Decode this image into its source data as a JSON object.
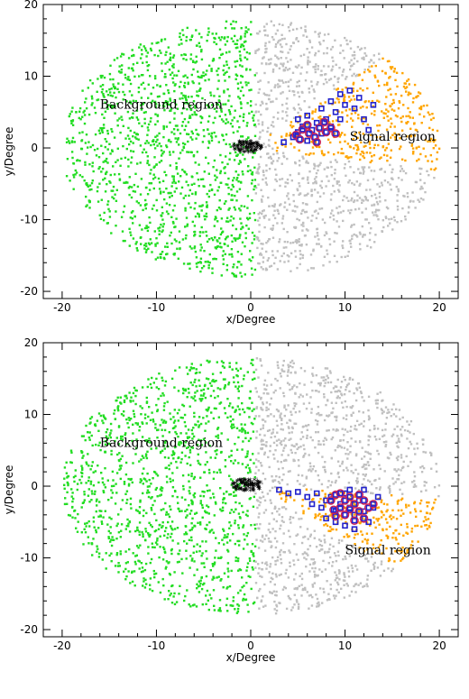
{
  "chart_data": [
    {
      "type": "scatter",
      "xlabel": "x/Degree",
      "ylabel": "y/Degree",
      "xlim": [
        -22,
        22
      ],
      "ylim": [
        -21,
        20
      ],
      "xticks": [
        "-20",
        "-10",
        "0",
        "10",
        "20"
      ],
      "yticks": [
        "-20",
        "-10",
        "0",
        "10",
        "20"
      ],
      "annotations": [
        {
          "text": "Background region",
          "x": -16,
          "y": 5.5
        },
        {
          "text": "Signal region",
          "x": 10.5,
          "y": 1
        }
      ],
      "colors": {
        "background": "#22dd22",
        "other": "#c0c0c0",
        "signal": "#ffa500",
        "center": "#000000",
        "source": "#2222cc",
        "significant": "#cc2255"
      },
      "signal_sector_deg": [
        -10,
        45
      ],
      "center": [
        0,
        0
      ],
      "series": [
        {
          "points": [
            [
              4.5,
              1.5
            ],
            [
              5.0,
              2.2
            ],
            [
              5.5,
              3.0
            ],
            [
              6.0,
              1.0
            ],
            [
              6.5,
              2.5
            ],
            [
              7.0,
              3.5
            ],
            [
              7.5,
              2.0
            ],
            [
              8.0,
              4.0
            ],
            [
              8.5,
              3.0
            ],
            [
              9.0,
              5.0
            ],
            [
              9.5,
              4.0
            ],
            [
              10.0,
              6.0
            ],
            [
              8.5,
              6.5
            ],
            [
              9.5,
              7.5
            ],
            [
              11.0,
              5.5
            ],
            [
              12.0,
              4.0
            ],
            [
              11.5,
              7.0
            ],
            [
              10.5,
              8.0
            ],
            [
              7.5,
              5.5
            ],
            [
              6.0,
              4.5
            ],
            [
              5.0,
              4.0
            ],
            [
              13.0,
              6.0
            ],
            [
              12.5,
              2.5
            ],
            [
              3.5,
              0.8
            ]
          ]
        },
        {
          "points": [
            [
              4.8,
              1.8
            ],
            [
              5.5,
              2.6
            ],
            [
              6.2,
              2.0
            ],
            [
              6.8,
              1.5
            ],
            [
              7.3,
              2.8
            ],
            [
              8.0,
              2.2
            ],
            [
              5.2,
              1.2
            ],
            [
              6.0,
              3.2
            ],
            [
              7.0,
              0.8
            ],
            [
              8.5,
              2.8
            ],
            [
              9.0,
              2.0
            ],
            [
              7.8,
              3.6
            ]
          ]
        }
      ]
    },
    {
      "type": "scatter",
      "xlabel": "x/Degree",
      "ylabel": "y/Degree",
      "xlim": [
        -22,
        22
      ],
      "ylim": [
        -21,
        20
      ],
      "xticks": [
        "-20",
        "-10",
        "0",
        "10",
        "20"
      ],
      "yticks": [
        "-20",
        "-10",
        "0",
        "10",
        "20"
      ],
      "annotations": [
        {
          "text": "Background region",
          "x": -16,
          "y": 5.5
        },
        {
          "text": "Signal region",
          "x": 10,
          "y": -9.5
        }
      ],
      "colors": {
        "background": "#22dd22",
        "other": "#c0c0c0",
        "signal": "#ffa500",
        "center": "#000000",
        "source": "#2222cc",
        "significant": "#cc2255"
      },
      "signal_sector_deg": [
        -40,
        -5
      ],
      "center": [
        0,
        0
      ],
      "series": [
        {
          "points": [
            [
              3.0,
              -0.5
            ],
            [
              4.0,
              -1.0
            ],
            [
              5.0,
              -0.8
            ],
            [
              6.0,
              -1.5
            ],
            [
              6.5,
              -2.5
            ],
            [
              7.0,
              -1.0
            ],
            [
              7.5,
              -3.0
            ],
            [
              8.0,
              -2.0
            ],
            [
              8.5,
              -1.5
            ],
            [
              9.0,
              -3.5
            ],
            [
              9.5,
              -2.5
            ],
            [
              10.0,
              -1.0
            ],
            [
              10.5,
              -3.0
            ],
            [
              11.0,
              -4.0
            ],
            [
              11.5,
              -2.0
            ],
            [
              12.0,
              -3.5
            ],
            [
              12.5,
              -5.0
            ],
            [
              13.0,
              -3.0
            ],
            [
              10.0,
              -5.5
            ],
            [
              9.0,
              -5.0
            ],
            [
              11.0,
              -6.0
            ],
            [
              8.0,
              -4.5
            ],
            [
              13.5,
              -1.5
            ],
            [
              12.0,
              -0.5
            ],
            [
              10.5,
              -0.5
            ]
          ]
        },
        {
          "points": [
            [
              8.5,
              -2.0
            ],
            [
              9.0,
              -1.2
            ],
            [
              9.5,
              -3.0
            ],
            [
              10.0,
              -2.0
            ],
            [
              10.5,
              -1.5
            ],
            [
              11.0,
              -2.5
            ],
            [
              11.5,
              -3.5
            ],
            [
              12.0,
              -2.0
            ],
            [
              12.5,
              -3.0
            ],
            [
              10.0,
              -4.0
            ],
            [
              9.0,
              -4.2
            ],
            [
              11.0,
              -4.8
            ],
            [
              12.0,
              -4.5
            ],
            [
              10.5,
              -3.2
            ],
            [
              9.5,
              -1.0
            ],
            [
              11.5,
              -1.2
            ],
            [
              8.8,
              -3.3
            ],
            [
              13.0,
              -2.5
            ]
          ]
        }
      ]
    }
  ]
}
